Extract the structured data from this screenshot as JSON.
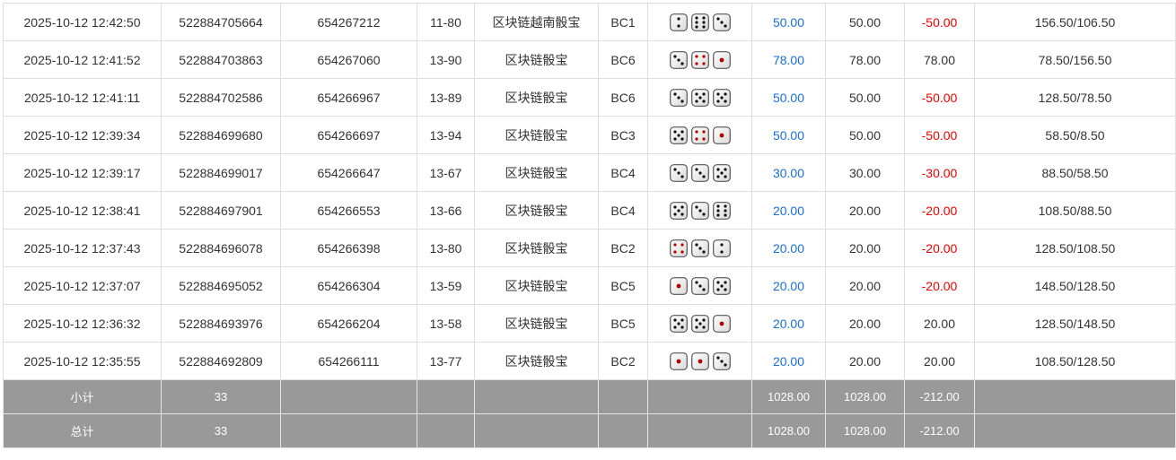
{
  "colors": {
    "bet": "#1a6ed8",
    "loss": "#ee0000",
    "pip_red": "#b00000",
    "summary_bg": "#999999"
  },
  "rows": [
    {
      "time": "2025-10-12 12:42:50",
      "order": "522884705664",
      "issue": "654267212",
      "table": "11-80",
      "game": "区块链越南骰宝",
      "code": "BC1",
      "dice": [
        2,
        6,
        3
      ],
      "bet": "50.00",
      "valid": "50.00",
      "win": "-50.00",
      "balance": "156.50/106.50"
    },
    {
      "time": "2025-10-12 12:41:52",
      "order": "522884703863",
      "issue": "654267060",
      "table": "13-90",
      "game": "区块链骰宝",
      "code": "BC6",
      "dice": [
        3,
        4,
        1
      ],
      "bet": "78.00",
      "valid": "78.00",
      "win": "78.00",
      "balance": "78.50/156.50"
    },
    {
      "time": "2025-10-12 12:41:11",
      "order": "522884702586",
      "issue": "654266967",
      "table": "13-89",
      "game": "区块链骰宝",
      "code": "BC6",
      "dice": [
        3,
        5,
        5
      ],
      "bet": "50.00",
      "valid": "50.00",
      "win": "-50.00",
      "balance": "128.50/78.50"
    },
    {
      "time": "2025-10-12 12:39:34",
      "order": "522884699680",
      "issue": "654266697",
      "table": "13-94",
      "game": "区块链骰宝",
      "code": "BC3",
      "dice": [
        5,
        4,
        1
      ],
      "bet": "50.00",
      "valid": "50.00",
      "win": "-50.00",
      "balance": "58.50/8.50"
    },
    {
      "time": "2025-10-12 12:39:17",
      "order": "522884699017",
      "issue": "654266647",
      "table": "13-67",
      "game": "区块链骰宝",
      "code": "BC4",
      "dice": [
        3,
        3,
        5
      ],
      "bet": "30.00",
      "valid": "30.00",
      "win": "-30.00",
      "balance": "88.50/58.50"
    },
    {
      "time": "2025-10-12 12:38:41",
      "order": "522884697901",
      "issue": "654266553",
      "table": "13-66",
      "game": "区块链骰宝",
      "code": "BC4",
      "dice": [
        5,
        3,
        6
      ],
      "bet": "20.00",
      "valid": "20.00",
      "win": "-20.00",
      "balance": "108.50/88.50"
    },
    {
      "time": "2025-10-12 12:37:43",
      "order": "522884696078",
      "issue": "654266398",
      "table": "13-80",
      "game": "区块链骰宝",
      "code": "BC2",
      "dice": [
        4,
        3,
        2
      ],
      "bet": "20.00",
      "valid": "20.00",
      "win": "-20.00",
      "balance": "128.50/108.50"
    },
    {
      "time": "2025-10-12 12:37:07",
      "order": "522884695052",
      "issue": "654266304",
      "table": "13-59",
      "game": "区块链骰宝",
      "code": "BC5",
      "dice": [
        1,
        3,
        5
      ],
      "bet": "20.00",
      "valid": "20.00",
      "win": "-20.00",
      "balance": "148.50/128.50"
    },
    {
      "time": "2025-10-12 12:36:32",
      "order": "522884693976",
      "issue": "654266204",
      "table": "13-58",
      "game": "区块链骰宝",
      "code": "BC5",
      "dice": [
        5,
        5,
        1
      ],
      "bet": "20.00",
      "valid": "20.00",
      "win": "20.00",
      "balance": "128.50/148.50"
    },
    {
      "time": "2025-10-12 12:35:55",
      "order": "522884692809",
      "issue": "654266111",
      "table": "13-77",
      "game": "区块链骰宝",
      "code": "BC2",
      "dice": [
        1,
        1,
        3
      ],
      "bet": "20.00",
      "valid": "20.00",
      "win": "20.00",
      "balance": "108.50/128.50"
    }
  ],
  "subtotal": {
    "label": "小计",
    "count": "33",
    "bet": "1028.00",
    "valid": "1028.00",
    "win": "-212.00"
  },
  "total": {
    "label": "总计",
    "count": "33",
    "bet": "1028.00",
    "valid": "1028.00",
    "win": "-212.00"
  }
}
